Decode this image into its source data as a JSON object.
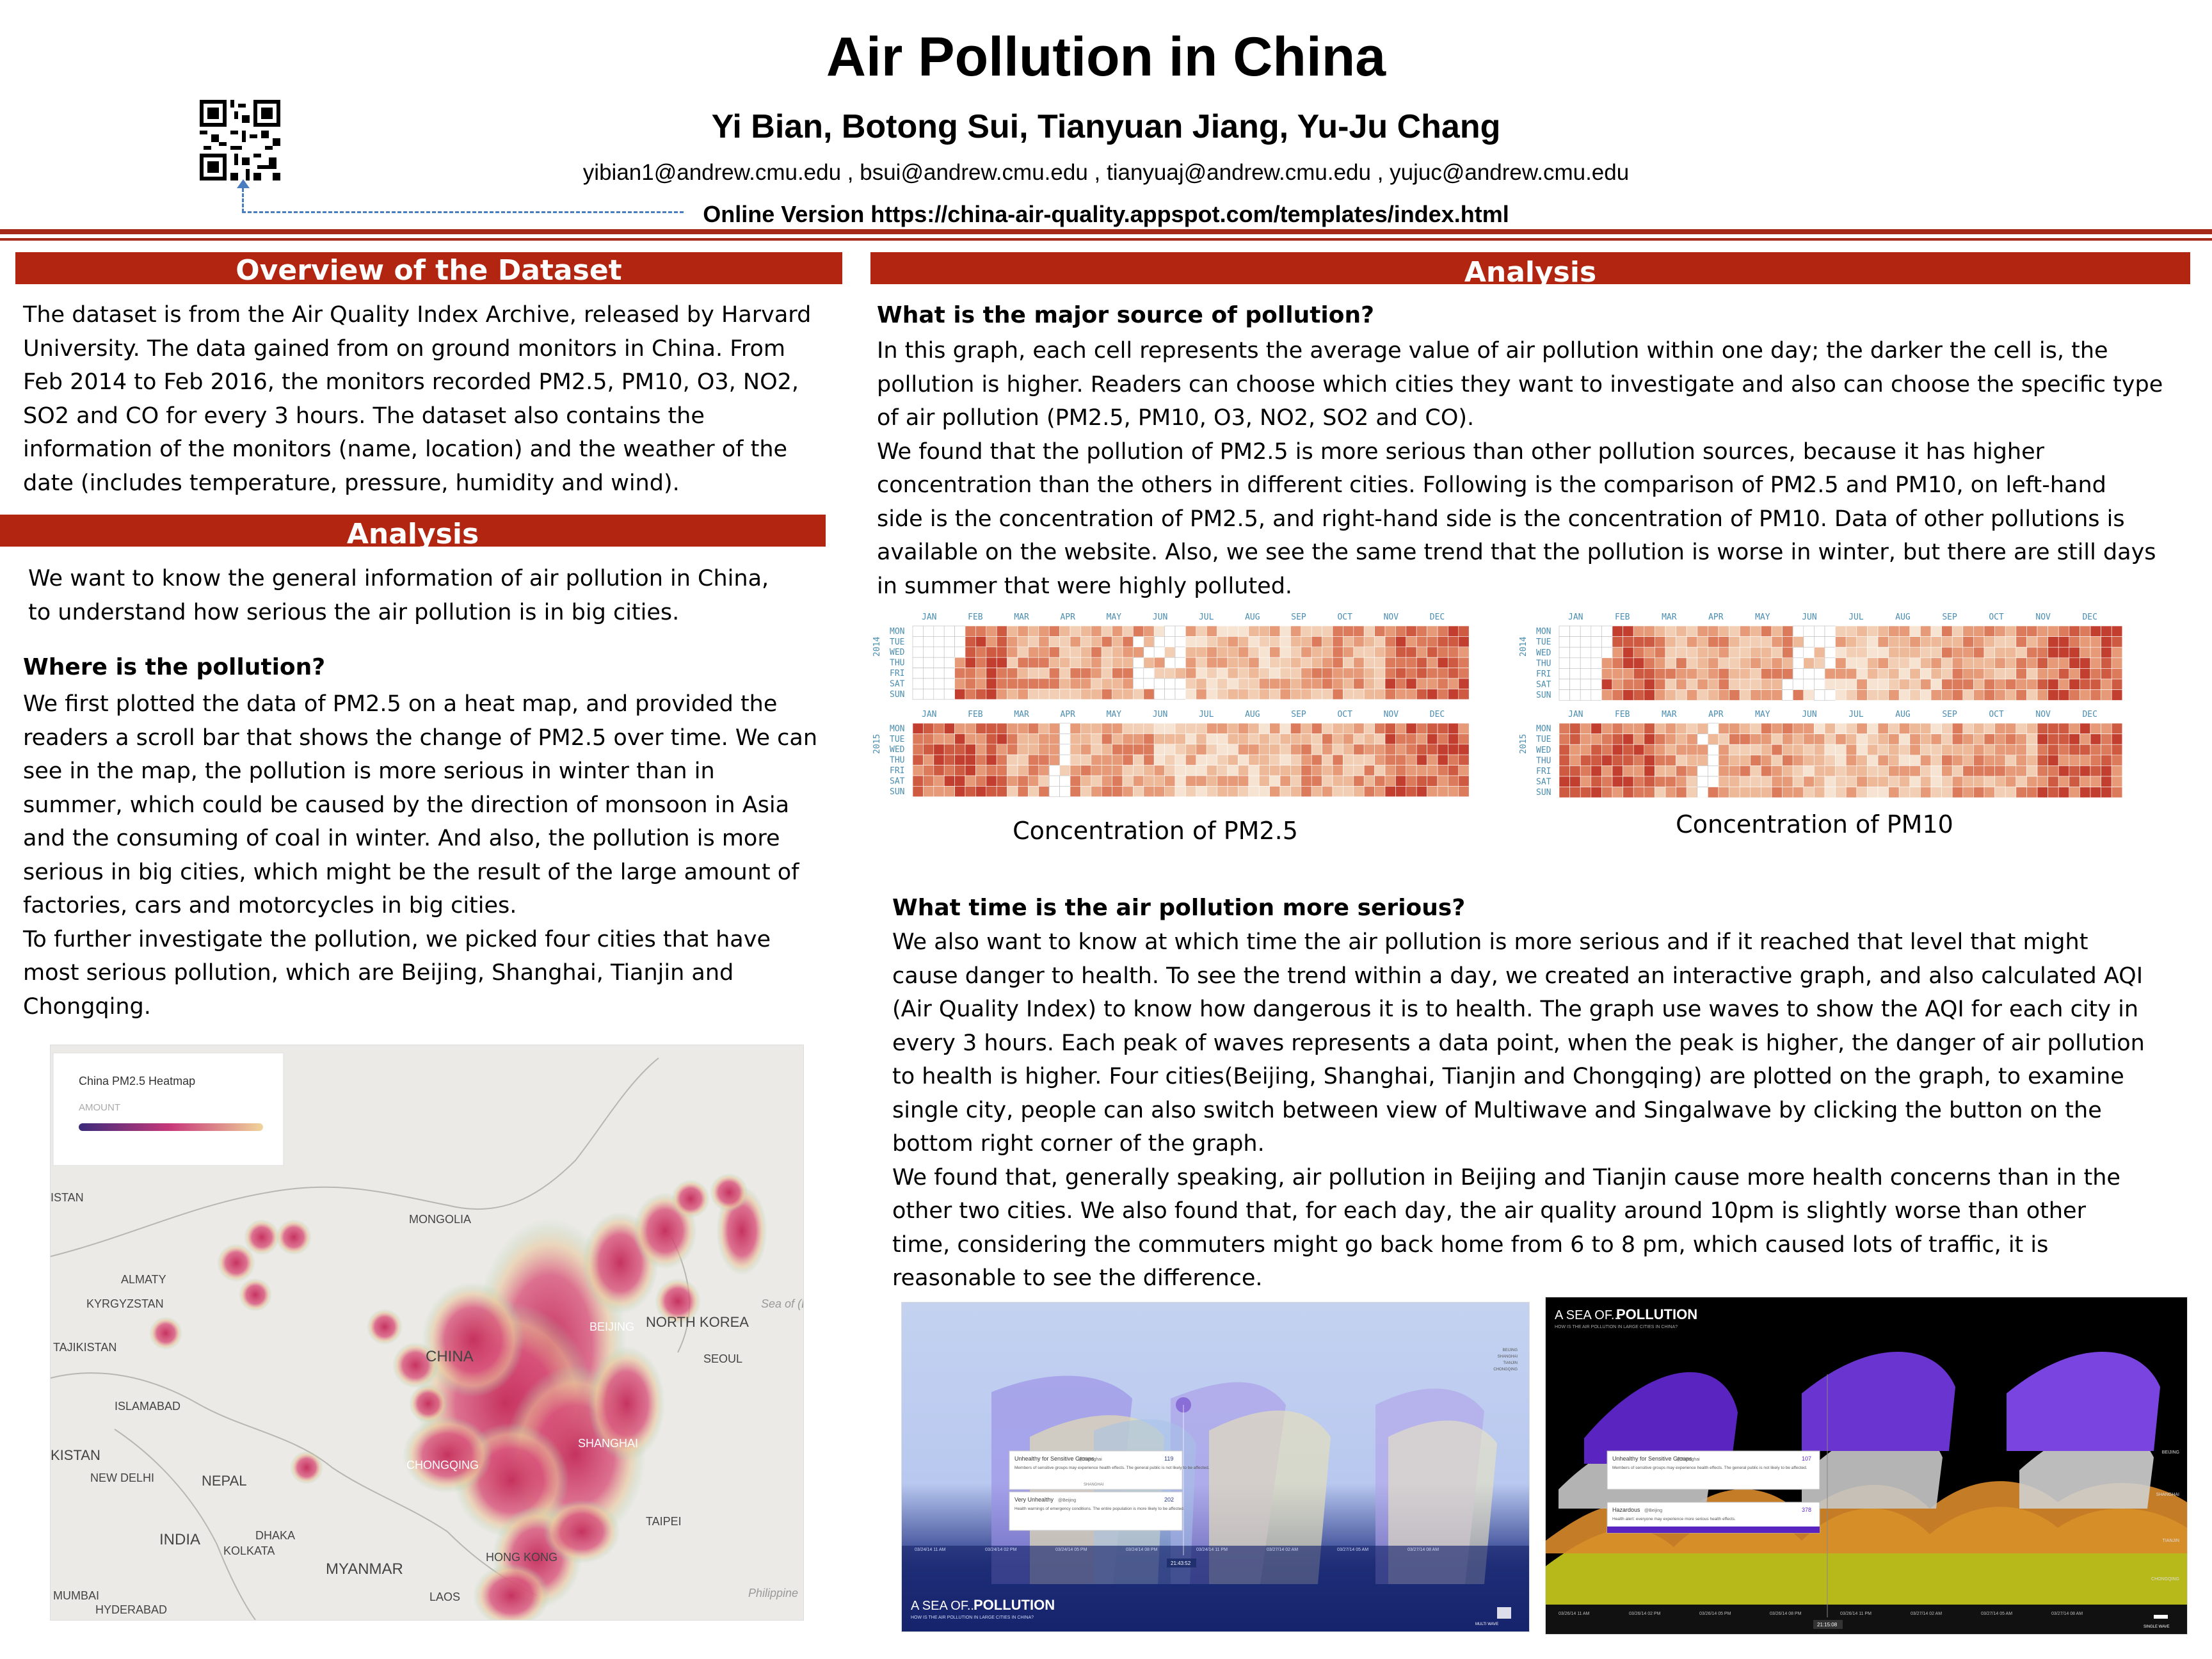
{
  "header": {
    "title": "Air Pollution in China",
    "authors": "Yi Bian, Botong Sui, Tianyuan Jiang, Yu-Ju Chang",
    "emails": "yibian1@andrew.cmu.edu , bsui@andrew.cmu.edu , tianyuaj@andrew.cmu.edu , yujuc@andrew.cmu.edu",
    "online": "Online Version https://china-air-quality.appspot.com/templates/index.html"
  },
  "left": {
    "overview_title": "Overview of the Dataset",
    "overview_lines": [
      "The dataset is from the Air Quality Index Archive, released by Harvard",
      "University. The data gained from on ground monitors in China. From",
      "Feb 2014 to Feb 2016, the monitors recorded PM2.5, PM10, O3, NO2,",
      "SO2 and CO for every 3 hours. The dataset also contains the",
      "information of the monitors (name, location) and the weather of the",
      "date (includes temperature, pressure, humidity and wind)."
    ],
    "analysis_title": "Analysis",
    "intro_lines": [
      "We want to know the general information of air pollution in China,",
      "to understand how serious the air pollution is in big cities."
    ],
    "where_heading": "Where is the pollution?",
    "where_lines": [
      "We first plotted the data of PM2.5 on a heat map, and provided the",
      "readers a scroll bar that shows the change of PM2.5 over time. We can",
      "see in the map, the pollution is more serious in winter than in",
      "summer, which could be caused by the direction of monsoon in Asia",
      "and the consuming of coal in winter. And also, the pollution is more",
      "serious in big cities, which might be the result of the large amount of",
      "factories, cars and motorcycles in big cities.",
      "To further investigate the pollution, we picked four cities that have",
      "most serious pollution, which are Beijing, Shanghai, Tianjin and",
      "Chongqing."
    ]
  },
  "map": {
    "legend_title": "China PM2.5 Heatmap",
    "legend_sub": "AMOUNT",
    "labels": [
      "MONGOLIA",
      "ALMATY",
      "KYRGYZSTAN",
      "TAJIKISTAN",
      "ISLAMABAD",
      "NEW DELHI",
      "NEPAL",
      "INDIA",
      "DHAKA",
      "KOLKATA",
      "MYANMAR",
      "MUMBAI",
      "HYDERABAD",
      "LAOS",
      "CHINA",
      "BEIJING",
      "NORTH KOREA",
      "SEOUL",
      "SHANGHAI",
      "CHONGQING",
      "TAIPEI",
      "HONG KONG",
      "Sea of (East)",
      "Philippine",
      "ISTAN",
      "KISTAN"
    ],
    "colors": {
      "low": "#3b2a7a",
      "mid": "#c8397a",
      "high": "#f0d59a"
    }
  },
  "right": {
    "analysis_title": "Analysis",
    "source_heading": "What is the major source of pollution?",
    "source_lines": [
      "In this graph, each cell represents the average value of air pollution within one day; the darker the cell is, the",
      "pollution is higher. Readers can choose which cities they want to investigate and also can choose the specific type",
      "of air pollution (PM2.5, PM10, O3, NO2, SO2 and CO).",
      "We found that the pollution of PM2.5 is more serious than other pollution sources, because it has higher",
      "concentration than the others in different cities. Following is the comparison of PM2.5 and PM10, on left-hand",
      "side is the concentration of PM2.5, and right-hand side is the concentration of PM10. Data of other pollutions is",
      "available on the website. Also, we see the same trend that the pollution is worse in winter, but there are still days",
      "in summer that were highly polluted."
    ],
    "caption_pm25": "Concentration of PM2.5",
    "caption_pm10": "Concentration of PM10",
    "time_heading": "What time is the air pollution more serious?",
    "time_lines": [
      "We also want to know at which time the air pollution is more serious and if it reached that level that might",
      "cause danger to health. To see the trend within a day, we created an interactive graph, and also calculated AQI",
      "(Air Quality Index) to know how dangerous it is to health. The graph use waves to show the AQI for each city in",
      "every 3 hours. Each peak of waves represents a data point, when the peak is higher, the danger of air pollution",
      "to health is higher. Four cities(Beijing, Shanghai, Tianjin and Chongqing) are plotted on the graph, to examine",
      "single city, people can also switch between view of Multiwave and Singalwave by clicking the button on the",
      "bottom right corner of the graph.",
      "We found that, generally speaking, air pollution in Beijing and Tianjin cause more health concerns than in the",
      "other two cities. We also found that, for each day, the air quality around 10pm is slightly worse than other",
      "time, considering the commuters might go back home from 6 to 8 pm, which caused lots of traffic, it is",
      "reasonable to see the difference."
    ]
  },
  "calendar": {
    "months": [
      "JAN",
      "FEB",
      "MAR",
      "APR",
      "MAY",
      "JUN",
      "JUL",
      "AUG",
      "SEP",
      "OCT",
      "NOV",
      "DEC"
    ],
    "days": [
      "MON",
      "TUE",
      "WED",
      "THU",
      "FRI",
      "SAT",
      "SUN"
    ],
    "years": [
      "2014",
      "2015"
    ]
  },
  "waves": {
    "light": {
      "card1_title": "Unhealthy for Sensitive Groups",
      "card1_city": "@Shanghai",
      "card1_value": "119",
      "card1_text": "Members of sensitive groups may experience health effects. The general public is not likely to be affected.",
      "card_divider": "SHANGHAI",
      "card2_title": "Very Unhealthy",
      "card2_city": "@Beijing",
      "card2_value": "202",
      "card2_text": "Health warnings of emergency conditions. The entire population is more likely to be affected.",
      "brand_small": "A SEA OF...",
      "brand_big": "POLLUTION",
      "subtitle": "HOW IS THE AIR POLLUTION IN LARGE CITIES IN CHINA?",
      "time_badge": "21:43:52",
      "legend": [
        "BEIJING",
        "SHANGHAI",
        "TIANJIN",
        "CHONGQING"
      ],
      "ticks": [
        "03/24/14 11 AM",
        "03/24/14 02 PM",
        "03/24/14 05 PM",
        "03/24/14 08 PM",
        "03/24/14 11 PM",
        "03/27/14 02 AM",
        "03/27/14 05 AM",
        "03/27/14 08 AM"
      ],
      "button": "MULTI WAVE"
    },
    "dark": {
      "brand_small": "A SEA OF...",
      "brand_big": "POLLUTION",
      "subtitle": "HOW IS THE AIR POLLUTION IN LARGE CITIES IN CHINA?",
      "card1_title": "Unhealthy for Sensitive Groups",
      "card1_city": "@Shanghai",
      "card1_value": "107",
      "card1_text": "Members of sensitive groups may experience health effects. The general public is not likely to be affected.",
      "card2_title": "Hazardous",
      "card2_city": "@Beijing",
      "card2_value": "378",
      "card2_text": "Health alert: everyone may experience more serious health effects.",
      "cities": [
        "BEIJING",
        "SHANGHAI",
        "TIANJIN",
        "CHONGQING"
      ],
      "time_badge": "21:15:08",
      "ticks": [
        "03/26/14 11 AM",
        "03/26/14 02 PM",
        "03/26/14 05 PM",
        "03/26/14 08 PM",
        "03/26/14 11 PM",
        "03/27/14 02 AM",
        "03/27/14 05 AM",
        "03/27/14 08 AM"
      ],
      "button": "SINGLE WAVE"
    }
  }
}
